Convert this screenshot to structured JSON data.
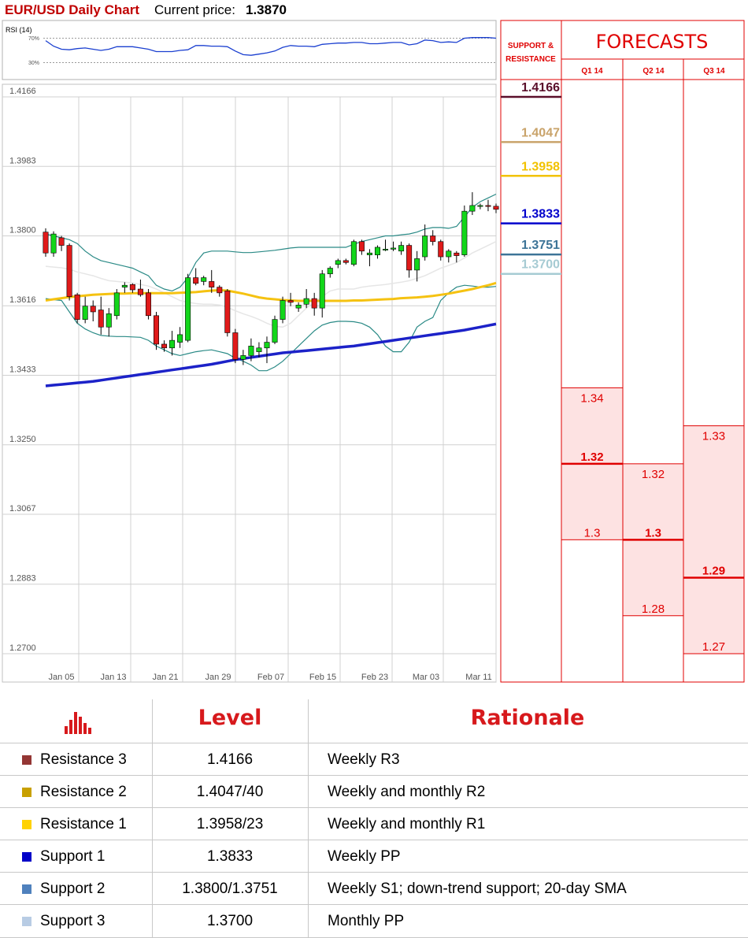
{
  "header": {
    "chart_title": "EUR/USD Daily Chart",
    "price_label": "Current price:",
    "price_value": "1.3870",
    "rsi_label": "RSI (14)",
    "rsi_ticks": [
      "70%",
      "30%"
    ]
  },
  "panel": {
    "sr_title_line1": "SUPPORT &",
    "sr_title_line2": "RESISTANCE",
    "forecast_title": "FORECASTS",
    "quarters": [
      "Q1 14",
      "Q2 14",
      "Q3 14"
    ]
  },
  "sr_levels": [
    {
      "label": "1.4166",
      "value": 1.4166,
      "color": "#5a0f2a"
    },
    {
      "label": "1.4047",
      "value": 1.4047,
      "color": "#c9a36a"
    },
    {
      "label": "1.3958",
      "value": 1.3958,
      "color": "#f2c200"
    },
    {
      "label": "1.3833",
      "value": 1.3833,
      "color": "#0000cc"
    },
    {
      "label": "1.3751",
      "value": 1.3751,
      "color": "#3d7497"
    },
    {
      "label": "1.3700",
      "value": 1.37,
      "color": "#a6cbd3"
    }
  ],
  "forecasts": [
    {
      "quarter": "Q1 14",
      "high": 1.34,
      "mid": 1.32,
      "low": 1.3,
      "high_label": "1.34",
      "mid_label": "1.32",
      "low_label": "1.3"
    },
    {
      "quarter": "Q2 14",
      "high": 1.32,
      "mid": 1.3,
      "low": 1.28,
      "high_label": "1.32",
      "mid_label": "1.3",
      "low_label": "1.28"
    },
    {
      "quarter": "Q3 14",
      "high": 1.33,
      "mid": 1.29,
      "low": 1.27,
      "high_label": "1.33",
      "mid_label": "1.29",
      "low_label": "1.27"
    }
  ],
  "table": {
    "header_level": "Level",
    "header_rationale": "Rationale",
    "rows": [
      {
        "name": "Resistance 3",
        "level": "1.4166",
        "rationale": "Weekly R3",
        "color": "#943634"
      },
      {
        "name": "Resistance 2",
        "level": "1.4047/40",
        "rationale": "Weekly and monthly R2",
        "color": "#c8a000"
      },
      {
        "name": "Resistance 1",
        "level": "1.3958/23",
        "rationale": "Weekly and monthly R1",
        "color": "#ffd200"
      },
      {
        "name": "Support 1",
        "level": "1.3833",
        "rationale": "Weekly PP",
        "color": "#0000c8"
      },
      {
        "name": "Support 2",
        "level": "1.3800/1.3751",
        "rationale": "Weekly S1; down-trend support; 20-day SMA",
        "color": "#4f81bd"
      },
      {
        "name": "Support 3",
        "level": "1.3700",
        "rationale": "Monthly PP",
        "color": "#b8cce4"
      }
    ]
  },
  "chart_data": {
    "type": "candlestick",
    "title": "EUR/USD Daily Chart",
    "y_ticks": [
      1.4166,
      1.3983,
      1.38,
      1.3616,
      1.3433,
      1.325,
      1.3067,
      1.2883,
      1.27
    ],
    "y_tick_labels": [
      "1.4166",
      "1.3983",
      "1.3800",
      "1.3616",
      "1.3433",
      "1.3250",
      "1.3067",
      "1.2883",
      "1.2700"
    ],
    "ylim": [
      1.27,
      1.4166
    ],
    "x_tick_labels": [
      "Jan 05",
      "Jan 13",
      "Jan 21",
      "Jan 29",
      "Feb 07",
      "Feb 15",
      "Feb 23",
      "Mar 03",
      "Mar 11"
    ],
    "grid": true,
    "candles": [
      {
        "o": 1.381,
        "h": 1.382,
        "l": 1.3745,
        "c": 1.3755
      },
      {
        "o": 1.3755,
        "h": 1.3812,
        "l": 1.3745,
        "c": 1.3805
      },
      {
        "o": 1.3795,
        "h": 1.38,
        "l": 1.376,
        "c": 1.3775
      },
      {
        "o": 1.3775,
        "h": 1.378,
        "l": 1.363,
        "c": 1.364
      },
      {
        "o": 1.3645,
        "h": 1.365,
        "l": 1.357,
        "c": 1.358
      },
      {
        "o": 1.358,
        "h": 1.364,
        "l": 1.357,
        "c": 1.3615
      },
      {
        "o": 1.3615,
        "h": 1.363,
        "l": 1.3575,
        "c": 1.36
      },
      {
        "o": 1.3605,
        "h": 1.364,
        "l": 1.354,
        "c": 1.356
      },
      {
        "o": 1.356,
        "h": 1.361,
        "l": 1.3535,
        "c": 1.3595
      },
      {
        "o": 1.359,
        "h": 1.366,
        "l": 1.358,
        "c": 1.365
      },
      {
        "o": 1.3665,
        "h": 1.3678,
        "l": 1.365,
        "c": 1.367
      },
      {
        "o": 1.3672,
        "h": 1.3675,
        "l": 1.365,
        "c": 1.3658
      },
      {
        "o": 1.366,
        "h": 1.3685,
        "l": 1.364,
        "c": 1.3645
      },
      {
        "o": 1.365,
        "h": 1.366,
        "l": 1.358,
        "c": 1.359
      },
      {
        "o": 1.359,
        "h": 1.36,
        "l": 1.35,
        "c": 1.3515
      },
      {
        "o": 1.3515,
        "h": 1.3525,
        "l": 1.3495,
        "c": 1.3505
      },
      {
        "o": 1.3505,
        "h": 1.355,
        "l": 1.3485,
        "c": 1.3525
      },
      {
        "o": 1.352,
        "h": 1.356,
        "l": 1.3505,
        "c": 1.354
      },
      {
        "o": 1.3525,
        "h": 1.37,
        "l": 1.352,
        "c": 1.369
      },
      {
        "o": 1.369,
        "h": 1.3715,
        "l": 1.367,
        "c": 1.3675
      },
      {
        "o": 1.368,
        "h": 1.3695,
        "l": 1.367,
        "c": 1.369
      },
      {
        "o": 1.368,
        "h": 1.371,
        "l": 1.365,
        "c": 1.3665
      },
      {
        "o": 1.3665,
        "h": 1.367,
        "l": 1.364,
        "c": 1.365
      },
      {
        "o": 1.3655,
        "h": 1.366,
        "l": 1.3535,
        "c": 1.3545
      },
      {
        "o": 1.3545,
        "h": 1.3555,
        "l": 1.3465,
        "c": 1.3475
      },
      {
        "o": 1.3475,
        "h": 1.35,
        "l": 1.346,
        "c": 1.3485
      },
      {
        "o": 1.3485,
        "h": 1.353,
        "l": 1.347,
        "c": 1.351
      },
      {
        "o": 1.3495,
        "h": 1.352,
        "l": 1.348,
        "c": 1.3505
      },
      {
        "o": 1.3505,
        "h": 1.3535,
        "l": 1.3465,
        "c": 1.352
      },
      {
        "o": 1.352,
        "h": 1.359,
        "l": 1.3515,
        "c": 1.358
      },
      {
        "o": 1.358,
        "h": 1.364,
        "l": 1.357,
        "c": 1.363
      },
      {
        "o": 1.363,
        "h": 1.365,
        "l": 1.3615,
        "c": 1.3625
      },
      {
        "o": 1.361,
        "h": 1.3625,
        "l": 1.36,
        "c": 1.3618
      },
      {
        "o": 1.362,
        "h": 1.366,
        "l": 1.361,
        "c": 1.3635
      },
      {
        "o": 1.3635,
        "h": 1.365,
        "l": 1.359,
        "c": 1.361
      },
      {
        "o": 1.361,
        "h": 1.371,
        "l": 1.3585,
        "c": 1.37
      },
      {
        "o": 1.37,
        "h": 1.372,
        "l": 1.369,
        "c": 1.3715
      },
      {
        "o": 1.3725,
        "h": 1.374,
        "l": 1.3715,
        "c": 1.3735
      },
      {
        "o": 1.3735,
        "h": 1.374,
        "l": 1.3725,
        "c": 1.373
      },
      {
        "o": 1.3725,
        "h": 1.379,
        "l": 1.372,
        "c": 1.3785
      },
      {
        "o": 1.3785,
        "h": 1.379,
        "l": 1.375,
        "c": 1.376
      },
      {
        "o": 1.375,
        "h": 1.3765,
        "l": 1.372,
        "c": 1.3755
      },
      {
        "o": 1.375,
        "h": 1.3775,
        "l": 1.374,
        "c": 1.377
      },
      {
        "o": 1.3765,
        "h": 1.379,
        "l": 1.376,
        "c": 1.3765
      },
      {
        "o": 1.3765,
        "h": 1.3785,
        "l": 1.376,
        "c": 1.3768
      },
      {
        "o": 1.376,
        "h": 1.3785,
        "l": 1.375,
        "c": 1.3775
      },
      {
        "o": 1.3775,
        "h": 1.378,
        "l": 1.369,
        "c": 1.371
      },
      {
        "o": 1.371,
        "h": 1.376,
        "l": 1.368,
        "c": 1.374
      },
      {
        "o": 1.3745,
        "h": 1.383,
        "l": 1.3735,
        "c": 1.38
      },
      {
        "o": 1.38,
        "h": 1.3815,
        "l": 1.3775,
        "c": 1.3785
      },
      {
        "o": 1.3785,
        "h": 1.379,
        "l": 1.3735,
        "c": 1.3745
      },
      {
        "o": 1.3745,
        "h": 1.3765,
        "l": 1.373,
        "c": 1.376
      },
      {
        "o": 1.3755,
        "h": 1.376,
        "l": 1.373,
        "c": 1.3748
      },
      {
        "o": 1.375,
        "h": 1.388,
        "l": 1.3745,
        "c": 1.3865
      },
      {
        "o": 1.3865,
        "h": 1.3915,
        "l": 1.3855,
        "c": 1.388
      },
      {
        "o": 1.388,
        "h": 1.3885,
        "l": 1.387,
        "c": 1.388
      },
      {
        "o": 1.388,
        "h": 1.3895,
        "l": 1.3865,
        "c": 1.3878
      },
      {
        "o": 1.3878,
        "h": 1.3885,
        "l": 1.386,
        "c": 1.387
      }
    ],
    "bollinger_upper": [
      1.3805,
      1.38,
      1.3795,
      1.379,
      1.378,
      1.376,
      1.3745,
      1.3735,
      1.373,
      1.3725,
      1.372,
      1.3715,
      1.3705,
      1.3695,
      1.367,
      1.366,
      1.3655,
      1.3665,
      1.369,
      1.373,
      1.3755,
      1.376,
      1.376,
      1.376,
      1.3758,
      1.3756,
      1.3756,
      1.3758,
      1.376,
      1.3762,
      1.3765,
      1.3768,
      1.377,
      1.377,
      1.377,
      1.377,
      1.377,
      1.377,
      1.377,
      1.3778,
      1.3785,
      1.379,
      1.3795,
      1.38,
      1.38,
      1.3803,
      1.3805,
      1.381,
      1.3818,
      1.3822,
      1.3822,
      1.382,
      1.3825,
      1.385,
      1.3875,
      1.389,
      1.39,
      1.391
    ],
    "bollinger_lower": [
      1.3635,
      1.3632,
      1.363,
      1.36,
      1.357,
      1.3555,
      1.3545,
      1.3538,
      1.3536,
      1.3535,
      1.3535,
      1.3534,
      1.3533,
      1.3525,
      1.351,
      1.35,
      1.349,
      1.3485,
      1.349,
      1.3495,
      1.3498,
      1.35,
      1.3495,
      1.349,
      1.3478,
      1.347,
      1.346,
      1.3445,
      1.3445,
      1.3455,
      1.347,
      1.349,
      1.351,
      1.353,
      1.355,
      1.3565,
      1.3572,
      1.3575,
      1.3575,
      1.3574,
      1.357,
      1.356,
      1.354,
      1.351,
      1.3495,
      1.3495,
      1.352,
      1.356,
      1.3575,
      1.3585,
      1.363,
      1.365,
      1.3665,
      1.367,
      1.3668,
      1.3665,
      1.3665,
      1.3667
    ],
    "sma20": [
      1.372,
      1.3718,
      1.3716,
      1.3712,
      1.3705,
      1.37,
      1.3695,
      1.3688,
      1.3682,
      1.368,
      1.3678,
      1.3676,
      1.3672,
      1.3668,
      1.366,
      1.365,
      1.364,
      1.363,
      1.3625,
      1.3622,
      1.362,
      1.362,
      1.3618,
      1.3612,
      1.3603,
      1.3595,
      1.3588,
      1.358,
      1.357,
      1.3562,
      1.356,
      1.357,
      1.359,
      1.361,
      1.3625,
      1.364,
      1.3655,
      1.366,
      1.366,
      1.366,
      1.3665,
      1.3668,
      1.367,
      1.3672,
      1.3675,
      1.3678,
      1.3682,
      1.3688,
      1.3695,
      1.3705,
      1.3715,
      1.3722,
      1.373,
      1.3742,
      1.3755,
      1.3765,
      1.3775,
      1.3785
    ],
    "sma50": [
      1.363,
      1.3633,
      1.3636,
      1.3639,
      1.3641,
      1.3643,
      1.3645,
      1.3646,
      1.3647,
      1.3648,
      1.3648,
      1.3649,
      1.3649,
      1.3649,
      1.3649,
      1.3649,
      1.3649,
      1.365,
      1.3651,
      1.3652,
      1.3654,
      1.3656,
      1.3657,
      1.3656,
      1.3652,
      1.3648,
      1.3643,
      1.3638,
      1.3635,
      1.3633,
      1.3631,
      1.363,
      1.3629,
      1.3629,
      1.3629,
      1.3629,
      1.3629,
      1.3629,
      1.3629,
      1.363,
      1.363,
      1.3631,
      1.3632,
      1.3633,
      1.3634,
      1.3636,
      1.3637,
      1.3638,
      1.364,
      1.3642,
      1.3645,
      1.3648,
      1.3652,
      1.3656,
      1.366,
      1.3665,
      1.367,
      1.3676
    ],
    "sma200": [
      1.3405,
      1.3407,
      1.3409,
      1.3411,
      1.3413,
      1.3415,
      1.3417,
      1.342,
      1.3423,
      1.3426,
      1.3429,
      1.3432,
      1.3435,
      1.3438,
      1.3441,
      1.3444,
      1.3447,
      1.345,
      1.3453,
      1.3456,
      1.3459,
      1.3462,
      1.3466,
      1.347,
      1.3474,
      1.3477,
      1.348,
      1.3483,
      1.3486,
      1.3489,
      1.3492,
      1.3494,
      1.3496,
      1.3498,
      1.35,
      1.3502,
      1.3504,
      1.3506,
      1.3508,
      1.351,
      1.3513,
      1.3516,
      1.3519,
      1.3522,
      1.3525,
      1.3528,
      1.3531,
      1.3534,
      1.3537,
      1.354,
      1.3543,
      1.3546,
      1.3549,
      1.3552,
      1.3556,
      1.356,
      1.3564,
      1.3568
    ],
    "rsi": [
      66,
      57,
      52,
      51,
      53,
      54,
      52,
      50,
      52,
      56,
      56,
      56,
      54,
      52,
      48,
      48,
      48,
      50,
      51,
      58,
      58,
      57,
      57,
      56,
      49,
      43,
      42,
      44,
      46,
      49,
      55,
      58,
      57,
      57,
      56,
      60,
      61,
      62,
      62,
      63,
      63,
      61,
      61,
      62,
      63,
      63,
      59,
      61,
      67,
      66,
      63,
      64,
      63,
      70,
      71,
      71,
      71,
      70
    ]
  }
}
